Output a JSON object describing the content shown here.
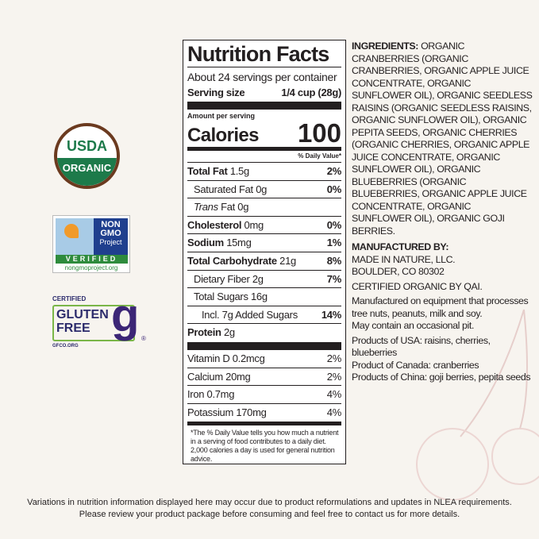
{
  "logos": {
    "usda": {
      "top": "USDA",
      "bottom": "ORGANIC"
    },
    "nongmo": {
      "line1": "NON",
      "line2": "GMO",
      "line3": "Project",
      "verified": "VERIFIED",
      "url": "nongmoproject.org"
    },
    "gluten_free": {
      "certified": "CERTIFIED",
      "line1": "GLUTEN",
      "line2": "FREE",
      "glyph": "g",
      "reg": "®",
      "url": "GFCO.ORG"
    }
  },
  "label": {
    "title": "Nutrition Facts",
    "servings": "About 24 servings per container",
    "serving_size_label": "Serving size",
    "serving_size_value": "1/4 cup (28g)",
    "amount_per_serving": "Amount per serving",
    "calories_label": "Calories",
    "calories_value": "100",
    "dv_header": "% Daily Value*",
    "nutrients": [
      {
        "name": "Total Fat",
        "amount": "1.5g",
        "dv": "2%",
        "bold": true,
        "indent": 0
      },
      {
        "name": "Saturated Fat",
        "amount": "0g",
        "dv": "0%",
        "bold": false,
        "indent": 1
      },
      {
        "name": "Trans Fat",
        "amount": "0g",
        "dv": "",
        "bold": false,
        "indent": 1
      },
      {
        "name": "Cholesterol",
        "amount": "0mg",
        "dv": "0%",
        "bold": true,
        "indent": 0
      },
      {
        "name": "Sodium",
        "amount": "15mg",
        "dv": "1%",
        "bold": true,
        "indent": 0
      },
      {
        "name": "Total Carbohydrate",
        "amount": "21g",
        "dv": "8%",
        "bold": true,
        "indent": 0
      },
      {
        "name": "Dietary Fiber",
        "amount": "2g",
        "dv": "7%",
        "bold": false,
        "indent": 1
      },
      {
        "name": "Total Sugars",
        "amount": "16g",
        "dv": "",
        "bold": false,
        "indent": 1
      },
      {
        "name": "Incl. 7g Added Sugars",
        "amount": "",
        "dv": "14%",
        "bold": false,
        "indent": 2
      },
      {
        "name": "Protein",
        "amount": "2g",
        "dv": "",
        "bold": true,
        "indent": 0
      }
    ],
    "vitamins": [
      {
        "name": "Vitamin D",
        "amount": "0.2mcg",
        "dv": "2%"
      },
      {
        "name": "Calcium",
        "amount": "20mg",
        "dv": "2%"
      },
      {
        "name": "Iron",
        "amount": "0.7mg",
        "dv": "4%"
      },
      {
        "name": "Potassium",
        "amount": "170mg",
        "dv": "4%"
      }
    ],
    "footnote": "*The % Daily Value tells you how much a nutrient in a serving of food contributes to a daily diet. 2,000 calories a day is used for general nutrition advice."
  },
  "right": {
    "ingredients_label": "INGREDIENTS:",
    "ingredients": "ORGANIC CRANBERRIES (ORGANIC CRANBERRIES, ORGANIC APPLE JUICE CONCENTRATE, ORGANIC SUNFLOWER OIL), ORGANIC SEEDLESS RAISINS (ORGANIC SEEDLESS RAISINS, ORGANIC SUNFLOWER OIL), ORGANIC PEPITA SEEDS, ORGANIC CHERRIES (ORGANIC CHERRIES, ORGANIC APPLE JUICE CONCENTRATE, ORGANIC SUNFLOWER OIL), ORGANIC BLUEBERRIES (ORGANIC BLUEBERRIES, ORGANIC APPLE JUICE CONCENTRATE, ORGANIC SUNFLOWER OIL), ORGANIC GOJI BERRIES.",
    "manufactured_label": "MANUFACTURED BY:",
    "manufacturer": "MADE IN NATURE, LLC.",
    "address": "BOULDER, CO 80302",
    "certified": "CERTIFIED ORGANIC BY QAI.",
    "allergen": "Manufactured on equipment that processes tree nuts, peanuts, milk and soy.",
    "pit": "May contain an occasional pit.",
    "usa": "Products of USA: raisins, cherries, blueberries",
    "canada": "Product of Canada: cranberries",
    "china": "Products of China: goji berries, pepita seeds"
  },
  "disclaimer": {
    "line1": "Variations in nutrition information displayed here may occur due to product reformulations and updates in NLEA requirements.",
    "line2": "Please review your product  package before consuming and feel free to contact us for more details."
  }
}
